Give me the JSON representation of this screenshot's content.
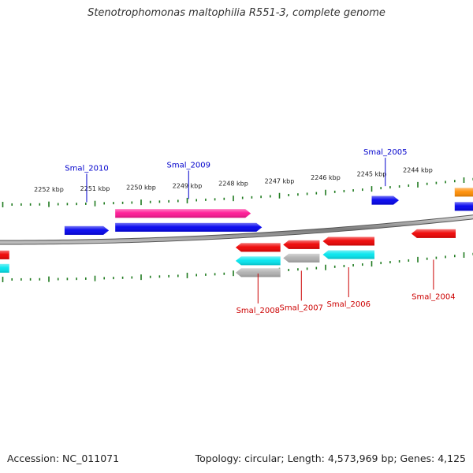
{
  "title": "Stenotrophomonas maltophilia R551-3, complete genome",
  "footer": {
    "accession": "Accession: NC_011071",
    "summary": "Topology: circular; Length: 4,573,969 bp; Genes: 4,125"
  },
  "colors": {
    "backbone": "#808080",
    "tick": "#1e7a1e",
    "label_top": "#0000cc",
    "label_bottom": "#cc0000"
  },
  "ticks": [
    {
      "label": "2252 kbp",
      "bp": 2252000
    },
    {
      "label": "2251 kbp",
      "bp": 2251000
    },
    {
      "label": "2250 kbp",
      "bp": 2250000
    },
    {
      "label": "2249 kbp",
      "bp": 2249000
    },
    {
      "label": "2248 kbp",
      "bp": 2248000
    },
    {
      "label": "2247 kbp",
      "bp": 2247000
    },
    {
      "label": "2246 kbp",
      "bp": 2246000
    },
    {
      "label": "2245 kbp",
      "bp": 2245000
    },
    {
      "label": "2244 kbp",
      "bp": 2244000
    }
  ],
  "features": [
    {
      "name": "Smal_2010",
      "color": "#0000ee",
      "strand": "+",
      "track": "forward",
      "start": 2251660,
      "end": 2250700,
      "labeled": true
    },
    {
      "name": "Smal_2009",
      "color": "#0000ee",
      "strand": "+",
      "track": "forward",
      "start": 2250560,
      "end": 2247380,
      "labeled": true
    },
    {
      "name": "",
      "color": "#ff1493",
      "strand": "+",
      "track": "forward_outer",
      "start": 2250560,
      "end": 2247620,
      "labeled": false
    },
    {
      "name": "Smal_2005",
      "color": "#0000ee",
      "strand": "+",
      "track": "forward_outer",
      "start": 2245000,
      "end": 2244410,
      "labeled": true
    },
    {
      "name": "",
      "color": "#0000ee",
      "strand": "+",
      "track": "forward",
      "start": 2243200,
      "end": 2242600,
      "labeled": false
    },
    {
      "name": "",
      "color": "#ff8c00",
      "strand": "+",
      "track": "forward_outer",
      "start": 2243200,
      "end": 2242600,
      "labeled": false
    },
    {
      "name": "",
      "color": "#ee0000",
      "strand": "-",
      "track": "reverse",
      "start": 2254500,
      "end": 2252860,
      "labeled": false
    },
    {
      "name": "",
      "color": "#00e5ee",
      "strand": "-",
      "track": "reverse_mid",
      "start": 2254500,
      "end": 2252860,
      "labeled": false
    },
    {
      "name": "Smal_2008",
      "color": "#ee0000",
      "strand": "-",
      "track": "reverse",
      "start": 2247950,
      "end": 2246980,
      "labeled": true
    },
    {
      "name": "",
      "color": "#00e5ee",
      "strand": "-",
      "track": "reverse_mid",
      "start": 2247950,
      "end": 2246980,
      "labeled": false
    },
    {
      "name": "",
      "color": "#b0b0b0",
      "strand": "-",
      "track": "reverse_inner",
      "start": 2247950,
      "end": 2246980,
      "labeled": false
    },
    {
      "name": "Smal_2007",
      "color": "#ee0000",
      "strand": "-",
      "track": "reverse",
      "start": 2246920,
      "end": 2246130,
      "labeled": true
    },
    {
      "name": "",
      "color": "#b0b0b0",
      "strand": "-",
      "track": "reverse_mid",
      "start": 2246920,
      "end": 2246130,
      "labeled": false
    },
    {
      "name": "Smal_2006",
      "color": "#ee0000",
      "strand": "-",
      "track": "reverse",
      "start": 2246060,
      "end": 2244940,
      "labeled": true
    },
    {
      "name": "",
      "color": "#00e5ee",
      "strand": "-",
      "track": "reverse_mid",
      "start": 2246060,
      "end": 2244940,
      "labeled": false
    },
    {
      "name": "Smal_2004",
      "color": "#ee0000",
      "strand": "-",
      "track": "reverse",
      "start": 2244140,
      "end": 2243180,
      "labeled": true
    }
  ]
}
